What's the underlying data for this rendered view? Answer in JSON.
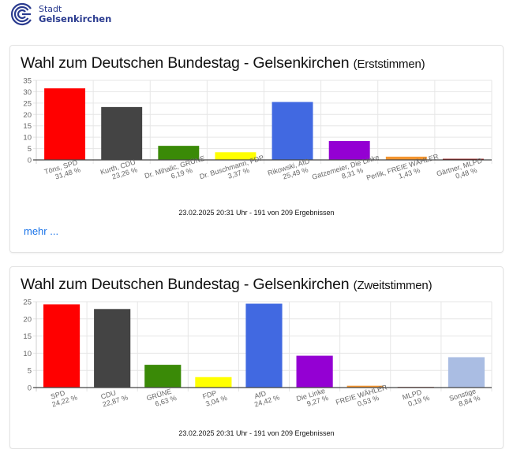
{
  "logo": {
    "line1": "Stadt",
    "line2": "Gelsenkirchen",
    "color": "#2a3b8f"
  },
  "cards": [
    {
      "title": "Wahl zum Deutschen Bundestag - Gelsenkirchen",
      "subtitle": "(Erststimmen)",
      "footnote": "23.02.2025 20:31 Uhr - 191 von 209 Ergebnissen",
      "more_link": "mehr ..."
    },
    {
      "title": "Wahl zum Deutschen Bundestag - Gelsenkirchen",
      "subtitle": "(Zweitstimmen)",
      "footnote": "23.02.2025 20:31 Uhr - 191 von 209 Ergebnissen"
    }
  ],
  "chart_data": [
    {
      "type": "bar",
      "title": "Wahl zum Deutschen Bundestag - Gelsenkirchen (Erststimmen)",
      "xlabel": "",
      "ylabel": "",
      "ylim": [
        0,
        35
      ],
      "yticks": [
        0,
        5,
        10,
        15,
        20,
        25,
        30,
        35
      ],
      "grid": true,
      "legend": "none",
      "categories": [
        "Töns, SPD",
        "Kurth, CDU",
        "Dr. Mihalic, GRÜNE",
        "Dr. Buschmann, FDP",
        "Rikowski, AfD",
        "Gatzemeier, Die Linke",
        "Perlik, FREIE WÄHLER",
        "Gärtner, MLPD"
      ],
      "value_labels": [
        "31,48 %",
        "23,26 %",
        "6,19 %",
        "3,37 %",
        "25,49 %",
        "8,31 %",
        "1,43 %",
        "0,48 %"
      ],
      "values": [
        31.48,
        23.26,
        6.19,
        3.37,
        25.49,
        8.31,
        1.43,
        0.48
      ],
      "colors": [
        "#ff0000",
        "#444444",
        "#3a8a07",
        "#ffff00",
        "#4169e1",
        "#9400d3",
        "#f39530",
        "#8b0000"
      ]
    },
    {
      "type": "bar",
      "title": "Wahl zum Deutschen Bundestag - Gelsenkirchen (Zweitstimmen)",
      "xlabel": "",
      "ylabel": "",
      "ylim": [
        0,
        25
      ],
      "yticks": [
        0,
        5,
        10,
        15,
        20,
        25
      ],
      "grid": true,
      "legend": "none",
      "categories": [
        "SPD",
        "CDU",
        "GRÜNE",
        "FDP",
        "AfD",
        "Die Linke",
        "FREIE WÄHLER",
        "MLPD",
        "Sonstige"
      ],
      "value_labels": [
        "24,22 %",
        "22,87 %",
        "6,63 %",
        "3,04 %",
        "24,42 %",
        "9,27 %",
        "0,53 %",
        "0,19 %",
        "8,84 %"
      ],
      "values": [
        24.22,
        22.87,
        6.63,
        3.04,
        24.42,
        9.27,
        0.53,
        0.19,
        8.84
      ],
      "colors": [
        "#ff0000",
        "#444444",
        "#3a8a07",
        "#ffff00",
        "#4169e1",
        "#9400d3",
        "#f39530",
        "#8b3a2a",
        "#aabde3"
      ]
    }
  ]
}
